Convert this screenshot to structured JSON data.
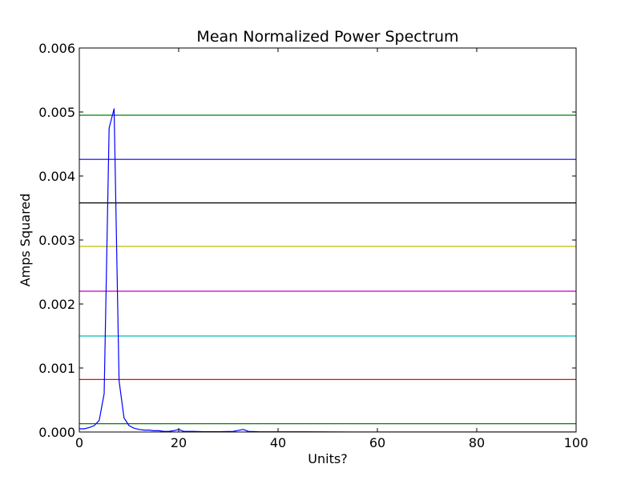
{
  "chart_data": {
    "type": "line",
    "title": "Mean Normalized Power Spectrum",
    "xlabel": "Units?",
    "ylabel": "Amps Squared",
    "xlim": [
      0,
      100
    ],
    "ylim": [
      0,
      0.006
    ],
    "xticks": [
      "0",
      "20",
      "40",
      "60",
      "80",
      "100"
    ],
    "yticks": [
      "0.000",
      "0.001",
      "0.002",
      "0.003",
      "0.004",
      "0.005",
      "0.006"
    ],
    "grid": false,
    "legend": "none",
    "series": [
      {
        "color": "#0000ff",
        "x": [
          0,
          1,
          2,
          3,
          4,
          5,
          6,
          7,
          8,
          9,
          10,
          11,
          12,
          13,
          14,
          15,
          16,
          17,
          18,
          19,
          20,
          21,
          22,
          23,
          25,
          28,
          30,
          31,
          33,
          34,
          36,
          40,
          45,
          50,
          55,
          60,
          70,
          80,
          90,
          100
        ],
        "y": [
          5e-05,
          5e-05,
          7e-05,
          0.0001,
          0.00018,
          0.0006,
          0.00475,
          0.00505,
          0.0008,
          0.00022,
          0.0001,
          6e-05,
          4e-05,
          3e-05,
          3e-05,
          2e-05,
          2e-05,
          1e-05,
          1e-05,
          2e-05,
          4e-05,
          1e-05,
          1e-05,
          1e-05,
          5e-06,
          5e-06,
          8e-06,
          1e-05,
          4e-05,
          1e-05,
          5e-06,
          3e-06,
          4e-06,
          2e-06,
          1e-06,
          1e-06,
          1e-06,
          1e-06,
          1e-06,
          1e-06
        ]
      }
    ],
    "reference_lines": [
      {
        "color": "#008000",
        "y": 0.00495
      },
      {
        "color": "#0000ff",
        "y": 0.00426
      },
      {
        "color": "#000000",
        "y": 0.00358
      },
      {
        "color": "#bfbf00",
        "y": 0.0029
      },
      {
        "color": "#bf00bf",
        "y": 0.0022
      },
      {
        "color": "#00bfbf",
        "y": 0.0015
      },
      {
        "color": "#ff0000",
        "y": 0.00082
      },
      {
        "color": "#008000",
        "y": 0.00013
      }
    ]
  }
}
